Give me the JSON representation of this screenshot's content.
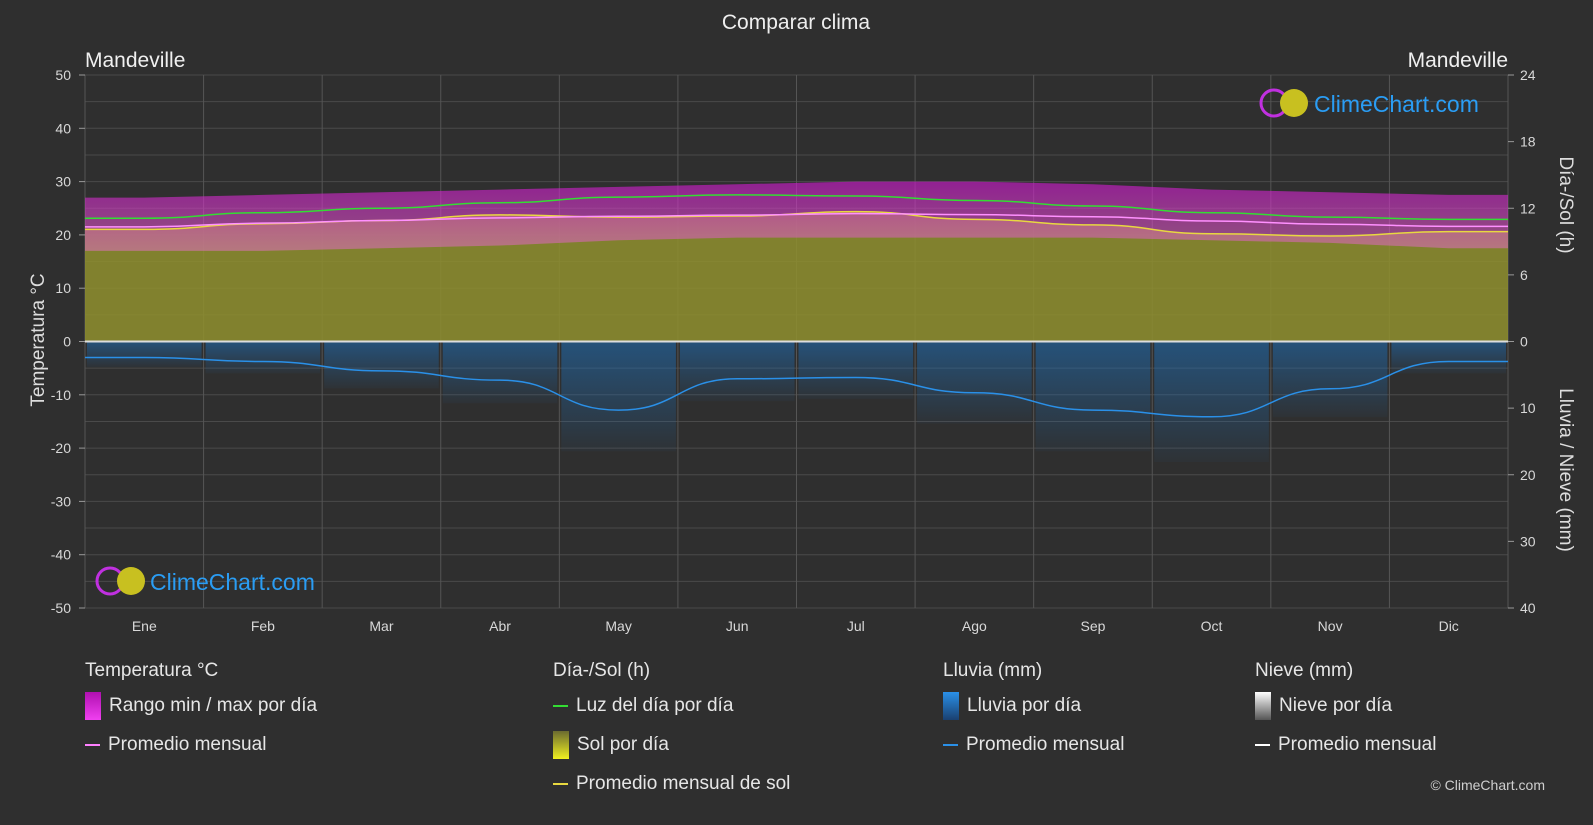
{
  "title": "Comparar clima",
  "location_left": "Mandeville",
  "location_right": "Mandeville",
  "brand": "ClimeChart.com",
  "copyright": "© ClimeChart.com",
  "axes": {
    "left_label": "Temperatura °C",
    "right_top_label": "Día-/Sol (h)",
    "right_bottom_label": "Lluvia / Nieve (mm)"
  },
  "colors": {
    "background": "#2f2f2f",
    "temp_range": "#d020d0",
    "temp_avg": "#ff80ff",
    "daylight": "#33dd33",
    "sunshine_fill": "#9a9a30",
    "sunshine_avg": "#e8d840",
    "rain": "#1e78c8",
    "rain_avg": "#2a90e8",
    "snow_avg": "#ffffff",
    "brand": "#2a9df4"
  },
  "chart_data": {
    "type": "line",
    "months": [
      "Ene",
      "Feb",
      "Mar",
      "Abr",
      "May",
      "Jun",
      "Jul",
      "Ago",
      "Sep",
      "Oct",
      "Nov",
      "Dic"
    ],
    "temp_ticks": [
      50,
      40,
      30,
      20,
      10,
      0,
      -10,
      -20,
      -30,
      -40,
      -50
    ],
    "temp_ylim": [
      -50,
      50
    ],
    "sun_ticks": [
      24,
      18,
      12,
      6,
      0
    ],
    "sun_ylim": [
      0,
      24
    ],
    "rain_ticks": [
      0,
      10,
      20,
      30,
      40
    ],
    "rain_ylim": [
      0,
      40
    ],
    "series": [
      {
        "name": "Luz del día por día",
        "axis": "hours",
        "values": [
          11.1,
          11.6,
          12.0,
          12.5,
          13.0,
          13.2,
          13.1,
          12.7,
          12.2,
          11.6,
          11.2,
          11.0
        ]
      },
      {
        "name": "Promedio mensual de sol",
        "axis": "hours",
        "values": [
          10.1,
          10.6,
          10.9,
          11.4,
          11.2,
          11.3,
          11.7,
          11.0,
          10.5,
          9.7,
          9.5,
          9.9
        ]
      },
      {
        "name": "Temperatura promedio mensual",
        "axis": "temp",
        "values": [
          21.5,
          22.2,
          22.7,
          23.2,
          23.5,
          23.7,
          24.0,
          23.8,
          23.4,
          22.6,
          22.0,
          21.6
        ]
      },
      {
        "name": "Temperatura max diaria",
        "axis": "temp",
        "values": [
          27,
          27.5,
          28,
          28.5,
          29,
          29.5,
          30,
          30,
          29.5,
          28.5,
          28,
          27.5
        ]
      },
      {
        "name": "Temperatura min diaria",
        "axis": "temp",
        "values": [
          17,
          17,
          17.5,
          18,
          19,
          19.5,
          19.5,
          19.5,
          19.5,
          19,
          18.5,
          17.5
        ]
      },
      {
        "name": "Lluvia promedio mensual",
        "axis": "mm",
        "values": [
          2.4,
          3.0,
          4.4,
          5.8,
          10.3,
          5.6,
          5.4,
          7.7,
          10.3,
          11.3,
          7.1,
          3.0
        ]
      },
      {
        "name": "Nieve promedio mensual",
        "axis": "mm",
        "values": [
          0,
          0,
          0,
          0,
          0,
          0,
          0,
          0,
          0,
          0,
          0,
          0
        ]
      }
    ]
  },
  "legend": {
    "temp": {
      "heading": "Temperatura °C",
      "range": "Rango min / max por día",
      "avg": "Promedio mensual"
    },
    "sun": {
      "heading": "Día-/Sol (h)",
      "daylight": "Luz del día por día",
      "sunshine": "Sol por día",
      "sunshine_avg": "Promedio mensual de sol"
    },
    "rain": {
      "heading": "Lluvia (mm)",
      "daily": "Lluvia por día",
      "avg": "Promedio mensual"
    },
    "snow": {
      "heading": "Nieve (mm)",
      "daily": "Nieve por día",
      "avg": "Promedio mensual"
    }
  }
}
